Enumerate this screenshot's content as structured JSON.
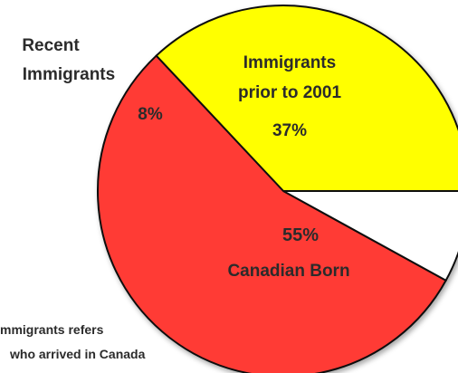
{
  "chart_data": {
    "type": "pie",
    "slices": [
      {
        "label": "Immigrants prior to 2001",
        "value": 37,
        "value_label": "37%",
        "color": "#ffff00"
      },
      {
        "label": "Canadian Born",
        "value": 55,
        "value_label": "55%",
        "color": "#ff3a36"
      },
      {
        "label": "Recent Immigrants",
        "value": 8,
        "value_label": "8%",
        "color": "#ffffff"
      }
    ]
  },
  "labels": {
    "recent_line1": "Recent",
    "recent_line2": "Immigrants",
    "prior_line1": "Immigrants",
    "prior_line2": "prior to 2001",
    "prior_value": "37%",
    "recent_value": "8%",
    "born_value": "55%",
    "born_name": "Canadian Born"
  },
  "footnote": {
    "line1": "mmigrants refers",
    "line2": "who arrived in Canada"
  }
}
